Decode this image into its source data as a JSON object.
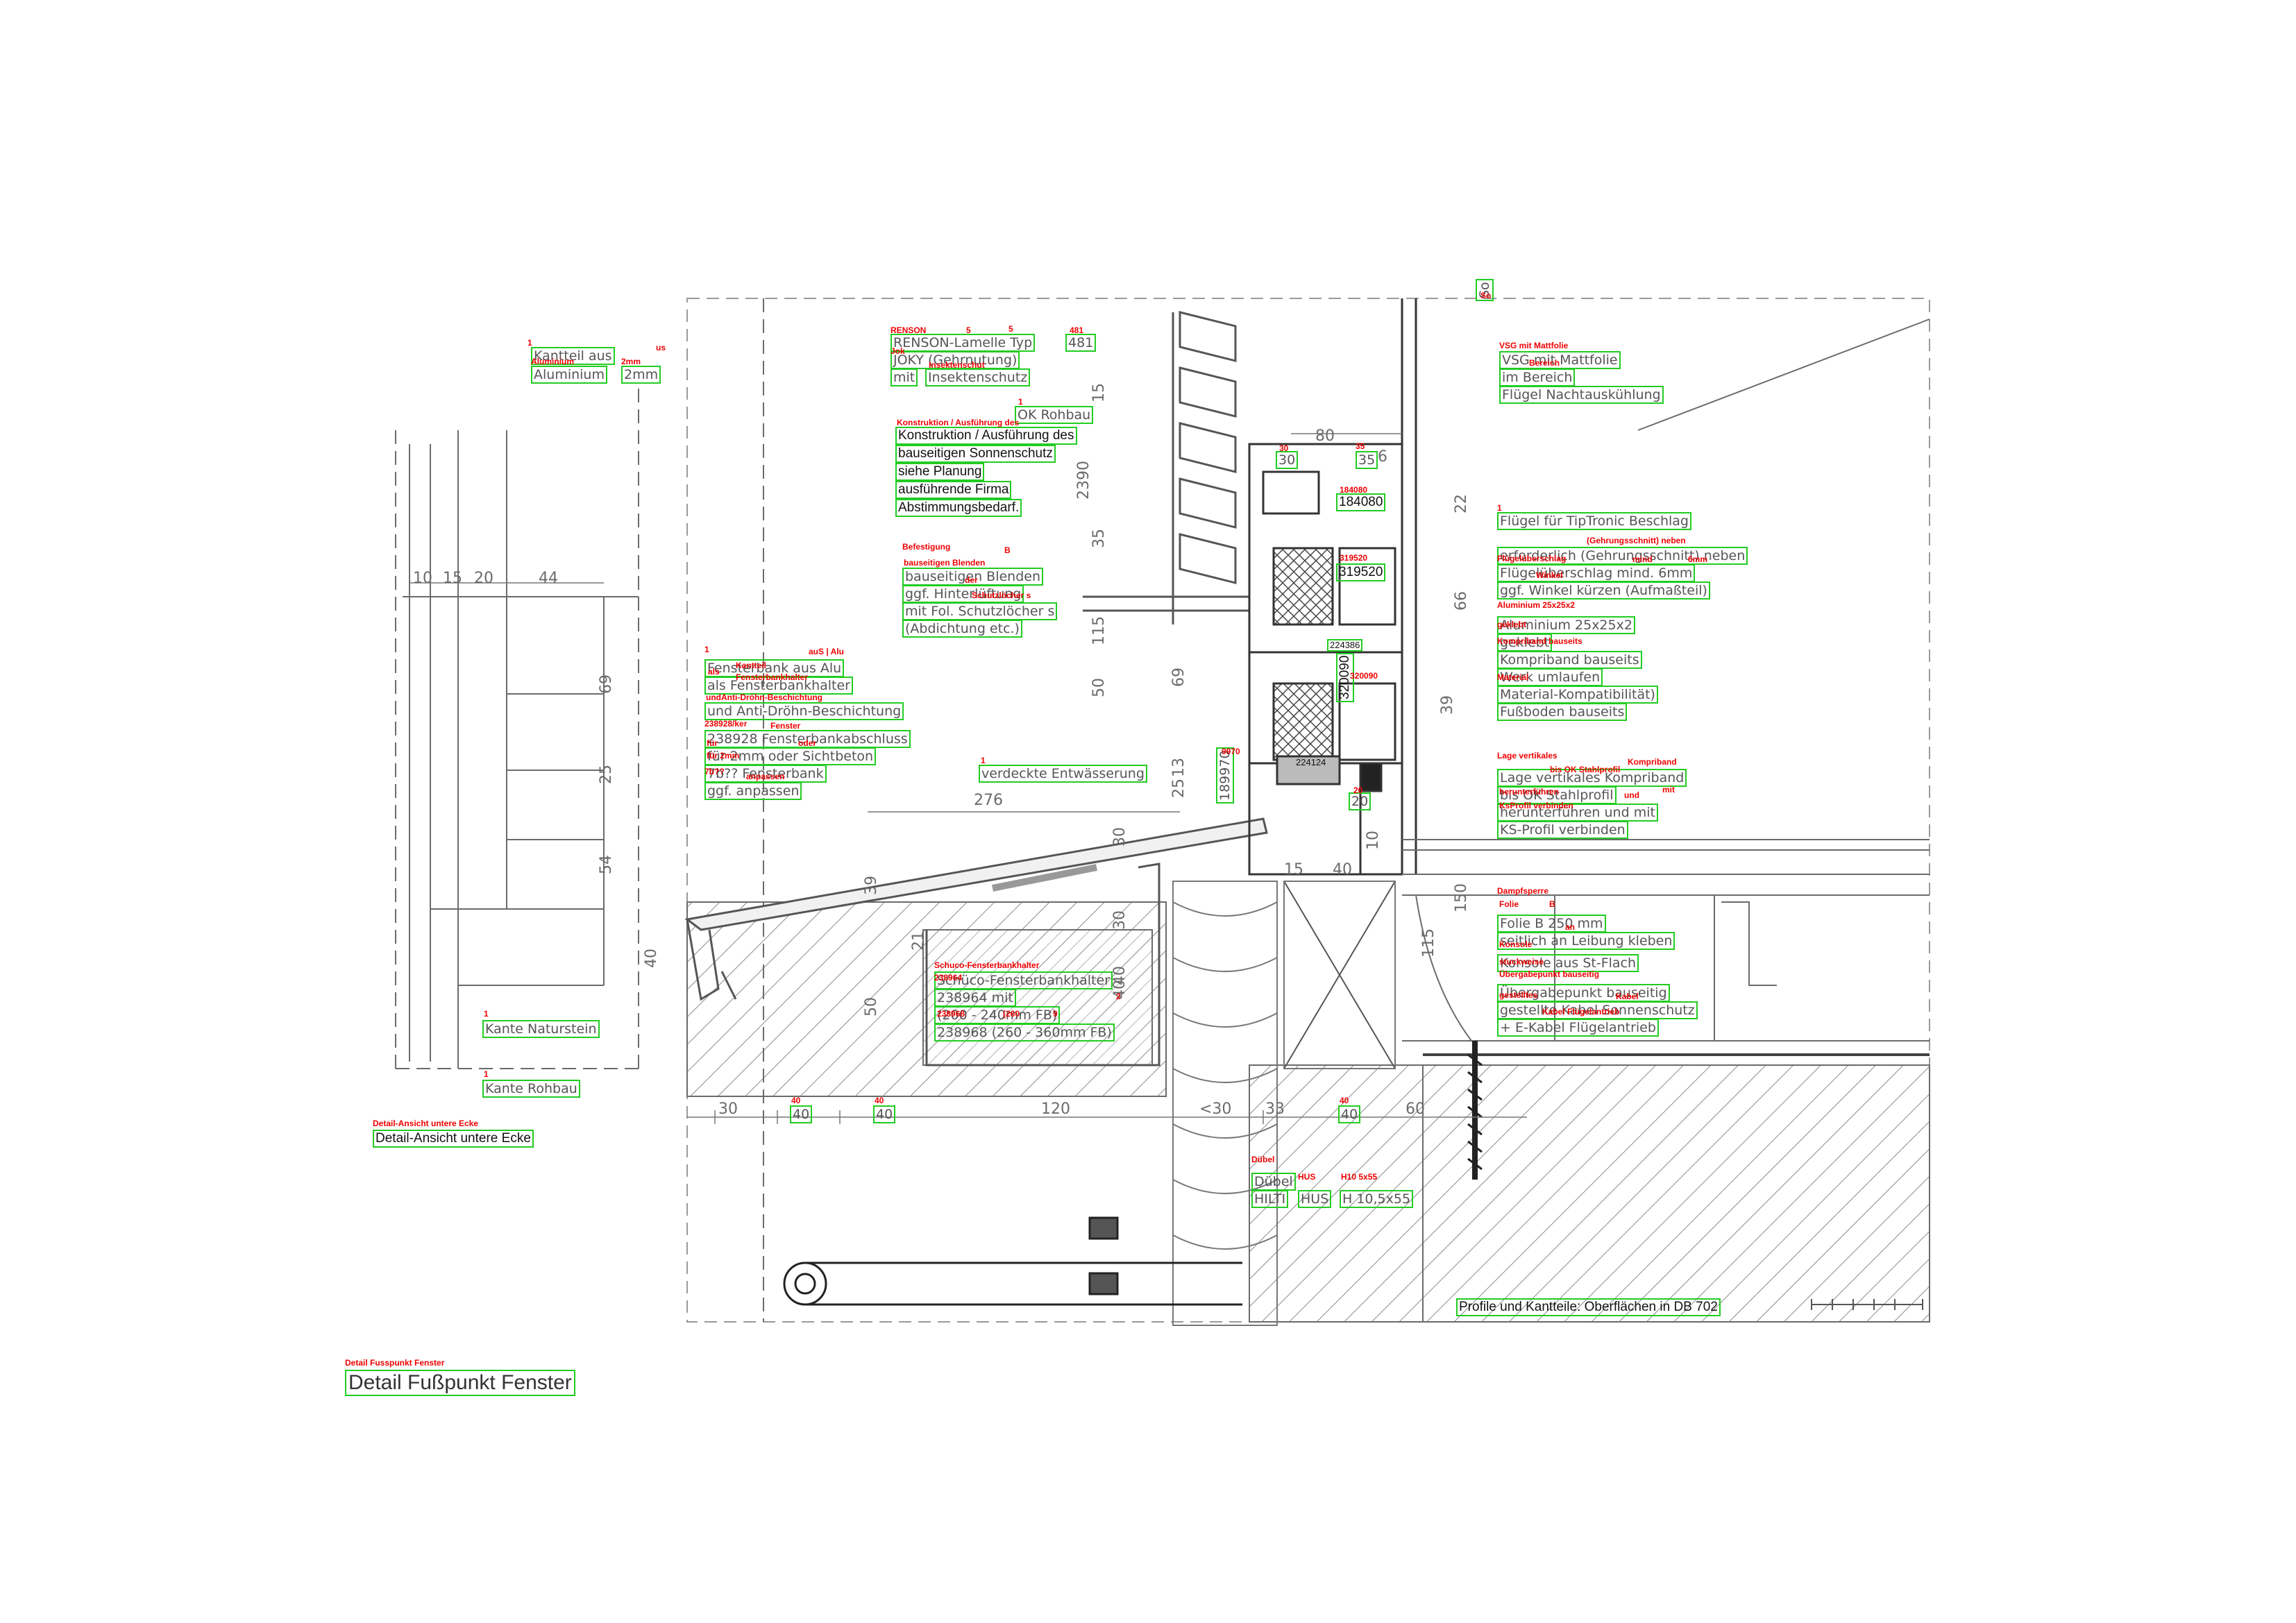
{
  "colors": {
    "annotation_box": "#22cc22",
    "ocr_tag": "#ee0000",
    "drawing": "#6b6b6b"
  },
  "drawing": {
    "dims": [
      "10",
      "15",
      "20",
      "44",
      "69",
      "25",
      "54",
      "40",
      "39",
      "21",
      "50",
      "276",
      "30",
      "120",
      "<30",
      "33",
      "60",
      "80",
      "6",
      "2390",
      "15",
      "35",
      "115",
      "50",
      "69",
      "13",
      "25",
      "66",
      "22",
      "39",
      "150",
      "115",
      "40",
      "15",
      "10",
      "30",
      "30",
      "40",
      "40"
    ]
  },
  "labels": {
    "kantteil_alu": "Kantteil aus",
    "alu_2mm_a": "Aluminium",
    "alu_2mm_b": "2mm",
    "renson_1": "RENSON-Lamelle Typ",
    "renson_481": "481",
    "renson_2": "JOKY (Gehrnutung)",
    "renson_3a": "mit",
    "renson_3b": "Insektenschutz",
    "ok_rohbau": "OK Rohbau",
    "konstr_1": "Konstruktion / Ausführung des",
    "konstr_2": "bauseitigen Sonnenschutz",
    "konstr_3": "siehe Planung",
    "konstr_4": "ausführende Firma",
    "konstr_5": "Abstimmungsbedarf.",
    "dim_30": "30",
    "dim_35": "35",
    "p184080": "184080",
    "p319520": "319520",
    "p224386": "224386",
    "p320090": "320090",
    "p224124": "224124",
    "dim_20": "20",
    "p9970": "9970",
    "p189970": "189970",
    "befest_1": "Befestigung",
    "befest_2": "bauseitigen Blenden",
    "befest_3": "ggf. Hinterlüftung",
    "befest_4": "mit Fol. Schutzlöcher s",
    "befest_5": "(Abdichtung etc.)",
    "fbk_1": "Fensterbank aus Alu",
    "fbk_2": "als Fensterbankhalter",
    "fbk_3": "und Anti-Dröhn-Beschichtung",
    "fbk_4": "238928 Fensterbankabschluss",
    "fbk_5": "für 2mm oder Sichtbeton",
    "fbk_6": "7b?? Fensterbank",
    "fbk_7": "ggf. anpassen",
    "verdeckte": "verdeckte Entwässerung",
    "vsg_0": "So",
    "vsg_1": "VSG mit Mattfolie",
    "vsg_2": "im Bereich",
    "vsg_3": "Flügel Nachtauskühlung",
    "fl_1": "Flügel für TipTronic Beschlag",
    "fl_2": "erforderlich (Gehrungsschnitt) neben",
    "fl_3": "Flügelüberschlag mind. 6mm",
    "fl_4": "ggf. Winkel kürzen (Aufmaßteil)",
    "fl_5": "Aluminium 25x25x2",
    "fl_6": "geklebt",
    "komp_1": "Kompriband bauseits",
    "komp_2": "Werk umlaufen",
    "komp_3": "Material-Kompatibilität)",
    "komp_4": "Fußboden bauseits",
    "lage_1": "Lage vertikales Kompriband",
    "lage_2": "bis OK Stahlprofil",
    "lage_3": "herunterführen und mit",
    "lage_4": "KS-Profil verbinden",
    "damp_1": "Dampfsperre",
    "damp_2": "Folie B 250 mm",
    "damp_3": "seitlich an Leibung kleben",
    "damp_4": "Konsole aus St-Flach",
    "damp_5": "Übergabepunkt bauseitig",
    "damp_6": "gestellte Kabel Sonnenschutz",
    "damp_7": "+ E-Kabel Flügelantrieb",
    "schuco_1": "Schüco-Fensterbankhalter",
    "schuco_2": "238964 mit",
    "schuco_3": "(200 - 240mm FB)",
    "schuco_4": "238968 (260 - 360mm FB)",
    "dim_40a": "40",
    "dim_40b": "40",
    "dim_40c": "40",
    "kante_nat": "Kante Naturstein",
    "kante_roh": "Kante Rohbau",
    "detail_ansicht": "Detail-Ansicht untere Ecke",
    "dubel_1": "Dübel",
    "dubel_2": "HILTI",
    "dubel_3": "HUS",
    "dubel_4": "H 10,5x55",
    "profile_note": "Profile und Kantteile: Oberflächen in DB 702",
    "main_title": "Detail Fußpunkt Fenster"
  },
  "tags": {
    "t1": "1",
    "t2": "us",
    "t3": "Aluminium",
    "t4": "2mm",
    "t5": "RENSON",
    "t6": "5",
    "t7": "5",
    "t8": "481",
    "t9": "Jok",
    "t10": "Insektenschut",
    "t11": "1",
    "t12": "Konstruktion / Ausführung des",
    "t13": "30",
    "t14": "35",
    "t15": "184080",
    "t16": "319520",
    "t17": "Befestigung",
    "t18": "B",
    "t19": "bauseitigen Blenden",
    "t20": "der",
    "t21": "Schutzlöcher s",
    "t22": "1",
    "t23": "Kantteil",
    "t24": "auS | Alu",
    "t25": "als",
    "t26": "Fensterbankhalter",
    "t27": "undAnti-Dröhn-Beschichtung",
    "t28": "238928/ker",
    "t29": "Fenster",
    "t30": "für",
    "t31": "oder",
    "t32": "für 2mm",
    "t33": "7b??",
    "t34": "anpassen",
    "t35": "1",
    "t36": "9970",
    "t37": "224124",
    "t38": "20",
    "t39": "320090",
    "t40": "224386",
    "t41": "So",
    "t42": "VSG mit Mattfolie",
    "t43": "Bereich",
    "t44": "1",
    "t45": "(Gehrungsschnitt) neben",
    "t46": "Flügelüberschlag",
    "t47": "mind",
    "t48": "6mm",
    "t49": "Winkel",
    "t50": "Aluminium 25x25x2",
    "t51": "geklebt",
    "t52": "Kompriband bauseits",
    "t53": "Material",
    "t54": "Lage vertikales",
    "t55": "Kompriband",
    "t56": "bis OK Stahlprofil",
    "t57": "herunterführen",
    "t58": "und",
    "t59": "mit",
    "t60": "KsProfil verbinden",
    "t61": "Dampfsperre",
    "t62": "Folie",
    "t63": "B",
    "t64": "an",
    "t65": "Konsole",
    "t66": "stuckweise",
    "t67": "Übergabepunkt bauseitig",
    "t68": "gestelltes",
    "t69": "Kabel",
    "t70": "Kabel Flügelantrieb",
    "t71": "Schuco-Fensterbankhalter",
    "t72": "238964",
    "t73": "238968",
    "t74": "(260",
    "t75": "2",
    "t76": "9",
    "t77": "40",
    "t78": "40",
    "t79": "40",
    "t80": "1",
    "t81": "1",
    "t82": "Detail-Ansicht untere Ecke",
    "t83": "Dübel",
    "t84": "HUS",
    "t85": "H10 5x55",
    "t86": "Detail Fusspunkt Fenster"
  }
}
